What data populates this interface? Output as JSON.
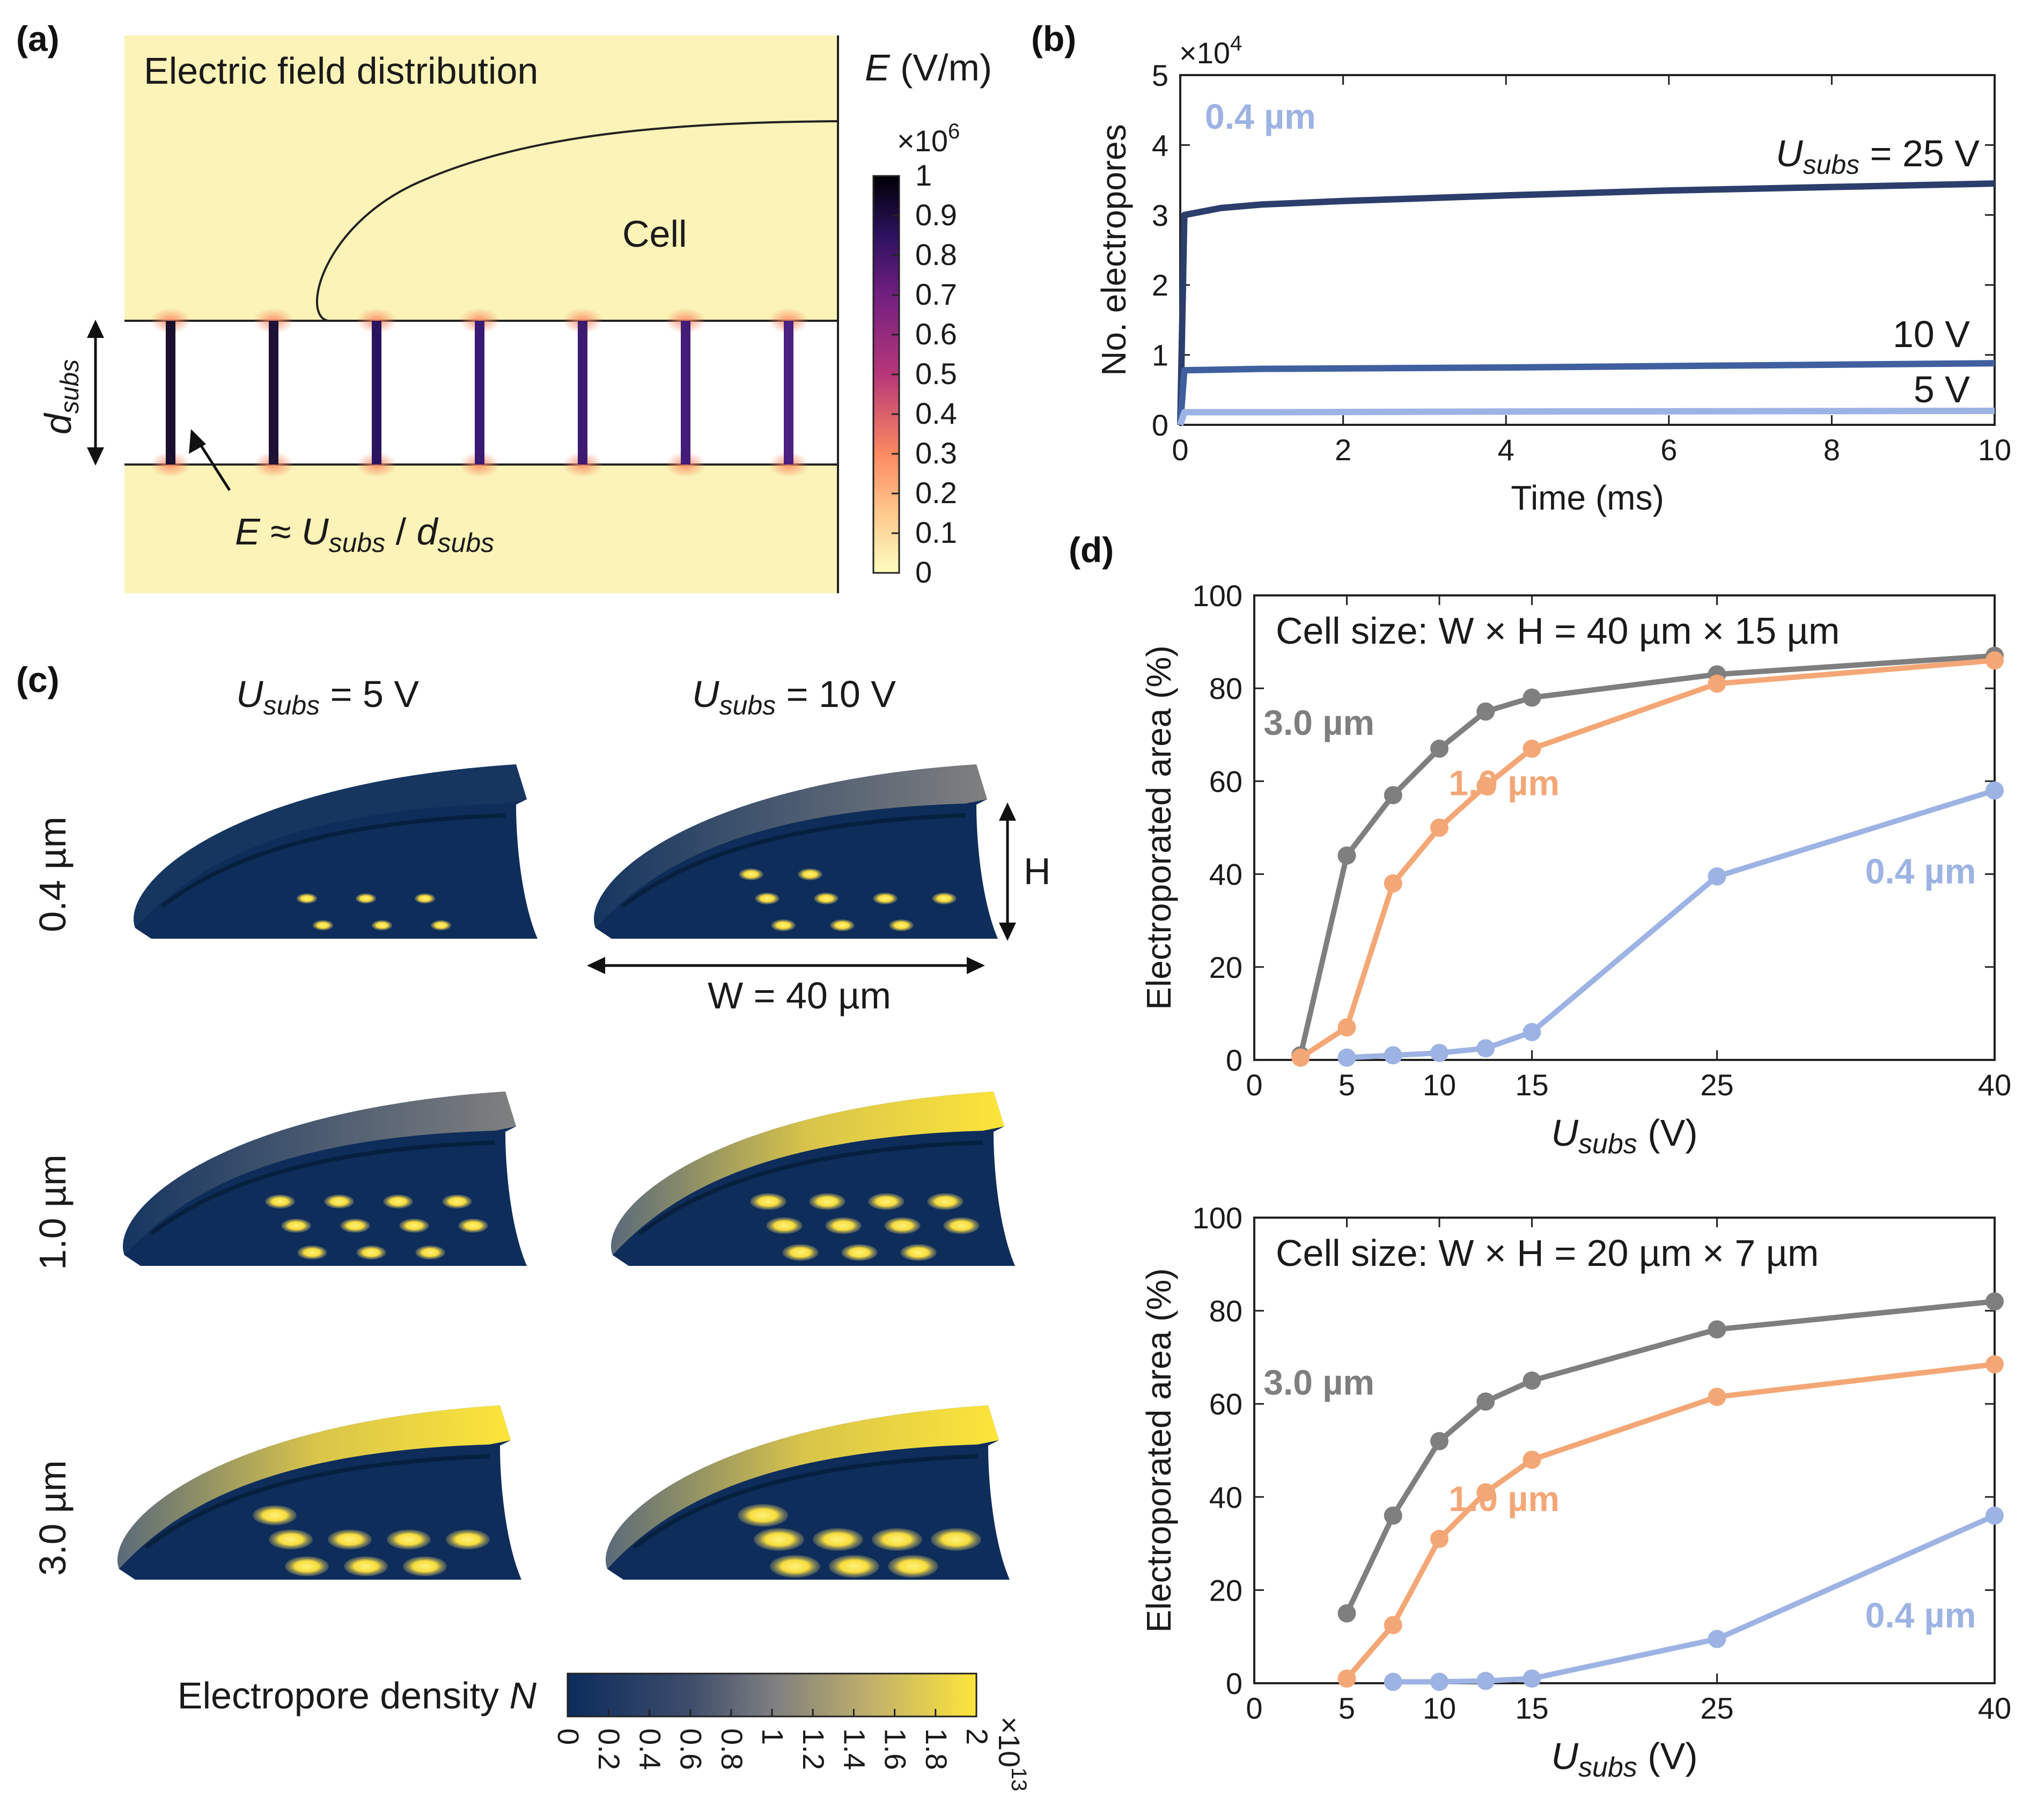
{
  "panel_labels": {
    "a": "(a)",
    "b": "(b)",
    "c": "(c)",
    "d": "(d)"
  },
  "panel_a": {
    "title": "Electric field distribution",
    "cell_label": "Cell",
    "d_label": "d",
    "d_sub": "subs",
    "eq_E": "E",
    "eq_approx": " ≈ ",
    "eq_U": "U",
    "eq_U_sub": "subs",
    "eq_slash": " / ",
    "eq_d": "d",
    "eq_d_sub": "subs",
    "colorbar_title_E": "E",
    "colorbar_title_unit": " (V/m)",
    "colorbar_multiplier": "×10",
    "colorbar_exp": "6",
    "colorbar_ticks": [
      "1",
      "0.9",
      "0.8",
      "0.7",
      "0.6",
      "0.5",
      "0.4",
      "0.3",
      "0.2",
      "0.1",
      "0"
    ],
    "colors": {
      "background": "#fbf3b7",
      "max": "#000004",
      "mid": "#b73779",
      "low": "#fc8961"
    }
  },
  "panel_c": {
    "col_header_U": "U",
    "col_header_sub": "subs",
    "col_headers": [
      " = 5 V",
      " = 10 V"
    ],
    "row_headers": [
      "0.4 µm",
      "1.0 µm",
      "3.0 µm"
    ],
    "H_label": "H",
    "W_label": "W = 40 µm",
    "colorbar_label_text": "Electropore density ",
    "colorbar_label_N": "N",
    "colorbar_ticks": [
      "0",
      "0.2",
      "0.4",
      "0.6",
      "0.8",
      "1",
      "1.2",
      "1.4",
      "1.6",
      "1.8",
      "2"
    ],
    "colorbar_multiplier": "×10",
    "colorbar_exp": "13",
    "colors": {
      "low": "#0c2c5c",
      "mid": "#7d7e80",
      "high": "#fde53a"
    }
  },
  "chart_data": [
    {
      "id": "b",
      "type": "line",
      "xlabel": "Time (ms)",
      "ylabel": "No. electropores",
      "xlim": [
        0,
        10
      ],
      "ylim": [
        0,
        5
      ],
      "x_ticks": [
        "0",
        "2",
        "4",
        "6",
        "8",
        "10"
      ],
      "y_ticks": [
        "0",
        "1",
        "2",
        "3",
        "4",
        "5"
      ],
      "y_multiplier": "×10",
      "y_multiplier_exp": "4",
      "annotation": "0.4 µm",
      "series": [
        {
          "name": "U_subs = 25 V",
          "label_U": "U",
          "label_sub": "subs",
          "label_rest": " = 25 V",
          "color": "#2c3e6b",
          "x": [
            0,
            0.05,
            0.5,
            1,
            2,
            4,
            6,
            8,
            10
          ],
          "values": [
            0,
            3.0,
            3.1,
            3.15,
            3.2,
            3.28,
            3.35,
            3.4,
            3.45
          ]
        },
        {
          "name": "10 V",
          "label": "10 V",
          "color": "#3f5f9e",
          "x": [
            0,
            0.05,
            1,
            4,
            10
          ],
          "values": [
            0,
            0.78,
            0.8,
            0.82,
            0.88
          ]
        },
        {
          "name": "5 V",
          "label": "5 V",
          "color": "#9db3e4",
          "x": [
            0,
            0.05,
            1,
            4,
            10
          ],
          "values": [
            0,
            0.18,
            0.18,
            0.19,
            0.2
          ]
        }
      ]
    },
    {
      "id": "d-top",
      "type": "line",
      "title": "Cell size: W × H = 40 µm × 15 µm",
      "xlabel_U": "U",
      "xlabel_sub": "subs",
      "xlabel_rest": " (V)",
      "ylabel": "Electroporated area (%)",
      "xlim": [
        0,
        40
      ],
      "ylim": [
        0,
        100
      ],
      "x_ticks": [
        "0",
        "5",
        "10",
        "15",
        "25",
        "40"
      ],
      "y_ticks": [
        "0",
        "20",
        "40",
        "60",
        "80",
        "100"
      ],
      "series": [
        {
          "name": "3.0 µm",
          "color": "#7f7f7f",
          "x": [
            2.5,
            5,
            7.5,
            10,
            12.5,
            15,
            25,
            40
          ],
          "values": [
            1,
            44,
            57,
            67,
            75,
            78,
            83,
            87
          ]
        },
        {
          "name": "1.0 µm",
          "color": "#f4a776",
          "x": [
            2.5,
            5,
            7.5,
            10,
            12.5,
            15,
            25,
            40
          ],
          "values": [
            0.5,
            7,
            38,
            50,
            59,
            67,
            81,
            86
          ]
        },
        {
          "name": "0.4 µm",
          "color": "#9db3e4",
          "x": [
            5,
            7.5,
            10,
            12.5,
            15,
            25,
            40
          ],
          "values": [
            0.5,
            1,
            1.5,
            2.5,
            6,
            39.5,
            58
          ]
        }
      ]
    },
    {
      "id": "d-bottom",
      "type": "line",
      "title": "Cell size: W × H = 20 µm × 7 µm",
      "xlabel_U": "U",
      "xlabel_sub": "subs",
      "xlabel_rest": " (V)",
      "ylabel": "Electroporated area (%)",
      "xlim": [
        0,
        40
      ],
      "ylim": [
        0,
        100
      ],
      "x_ticks": [
        "0",
        "5",
        "10",
        "15",
        "25",
        "40"
      ],
      "y_ticks": [
        "0",
        "20",
        "40",
        "60",
        "80",
        "100"
      ],
      "series": [
        {
          "name": "3.0 µm",
          "color": "#7f7f7f",
          "x": [
            5,
            7.5,
            10,
            12.5,
            15,
            25,
            40
          ],
          "values": [
            15,
            36,
            52,
            60.5,
            65,
            76,
            82
          ]
        },
        {
          "name": "1.0 µm",
          "color": "#f4a776",
          "x": [
            5,
            7.5,
            10,
            12.5,
            15,
            25,
            40
          ],
          "values": [
            1,
            12.5,
            31,
            41,
            48,
            61.5,
            68.5
          ]
        },
        {
          "name": "0.4 µm",
          "color": "#9db3e4",
          "x": [
            7.5,
            10,
            12.5,
            15,
            25,
            40
          ],
          "values": [
            0.3,
            0.3,
            0.5,
            1,
            9.5,
            36
          ]
        }
      ]
    }
  ]
}
